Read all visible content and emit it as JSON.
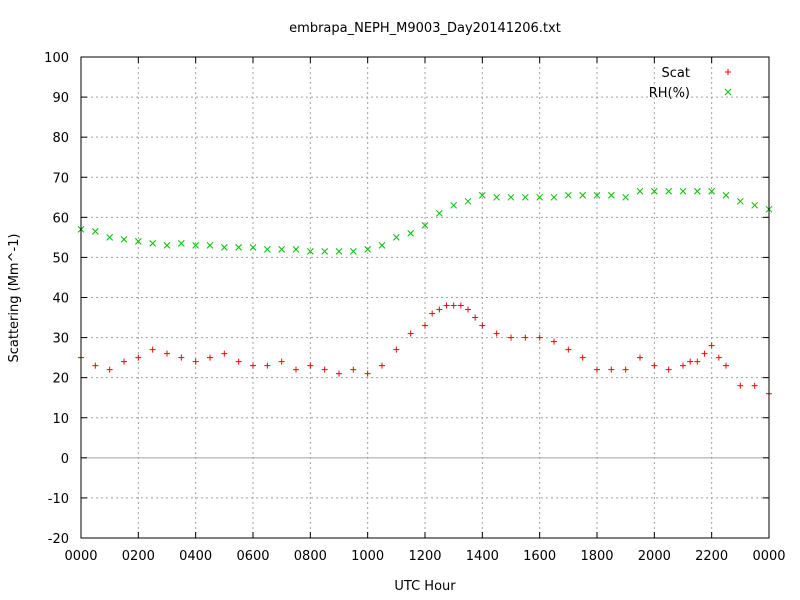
{
  "chart_data": {
    "type": "scatter",
    "title": "embrapa_NEPH_M9003_Day20141206.txt",
    "xlabel": "UTC Hour",
    "ylabel": "Scattering (Mm^-1)",
    "xlim": [
      0,
      24
    ],
    "ylim": [
      -20,
      100
    ],
    "x_ticks": [
      0,
      2,
      4,
      6,
      8,
      10,
      12,
      14,
      16,
      18,
      20,
      22,
      24
    ],
    "x_tick_labels": [
      "0000",
      "0200",
      "0400",
      "0600",
      "0800",
      "1000",
      "1200",
      "1400",
      "1600",
      "1800",
      "2000",
      "2200",
      "0000"
    ],
    "y_ticks": [
      -20,
      -10,
      0,
      10,
      20,
      30,
      40,
      50,
      60,
      70,
      80,
      90,
      100
    ],
    "y_tick_labels": [
      "-20",
      "-10",
      "0",
      "10",
      "20",
      "30",
      "40",
      "50",
      "60",
      "70",
      "80",
      "90",
      "100"
    ],
    "grid": true,
    "legend_position": "top-right",
    "series": [
      {
        "name": "Scat",
        "marker": "+",
        "color": "#ff0000",
        "x": [
          0,
          0.5,
          1,
          1.5,
          2,
          2.5,
          3,
          3.5,
          4,
          4.5,
          5,
          5.5,
          6,
          6.5,
          7,
          7.5,
          8,
          8.5,
          9,
          9.5,
          10,
          10.5,
          11,
          11.5,
          12,
          12.25,
          12.5,
          12.75,
          13,
          13.25,
          13.5,
          13.75,
          14,
          14.5,
          15,
          15.5,
          16,
          16.5,
          17,
          17.5,
          18,
          18.5,
          19,
          19.5,
          20,
          20.5,
          21,
          21.25,
          21.5,
          21.75,
          22,
          22.25,
          22.5,
          23,
          23.5,
          24
        ],
        "y": [
          25,
          23,
          22,
          24,
          25,
          27,
          26,
          25,
          24,
          25,
          26,
          24,
          23,
          23,
          24,
          22,
          23,
          22,
          21,
          22,
          21,
          23,
          27,
          31,
          33,
          36,
          37,
          38,
          38,
          38,
          37,
          35,
          33,
          31,
          30,
          30,
          30,
          29,
          27,
          25,
          22,
          22,
          22,
          25,
          23,
          22,
          23,
          24,
          24,
          26,
          28,
          25,
          23,
          18,
          18,
          16
        ]
      },
      {
        "name": "RH(%)",
        "marker": "x",
        "color": "#00c000",
        "x": [
          0,
          0.5,
          1,
          1.5,
          2,
          2.5,
          3,
          3.5,
          4,
          4.5,
          5,
          5.5,
          6,
          6.5,
          7,
          7.5,
          8,
          8.5,
          9,
          9.5,
          10,
          10.5,
          11,
          11.5,
          12,
          12.5,
          13,
          13.5,
          14,
          14.5,
          15,
          15.5,
          16,
          16.5,
          17,
          17.5,
          18,
          18.5,
          19,
          19.5,
          20,
          20.5,
          21,
          21.5,
          22,
          22.5,
          23,
          23.5,
          24
        ],
        "y": [
          57,
          56.5,
          55,
          54.5,
          54,
          53.5,
          53,
          53.5,
          53,
          53,
          52.5,
          52.5,
          52.5,
          52,
          52,
          52,
          51.5,
          51.5,
          51.5,
          51.5,
          52,
          53,
          55,
          56,
          58,
          61,
          63,
          64,
          65.5,
          65,
          65,
          65,
          65,
          65,
          65.5,
          65.5,
          65.5,
          65.5,
          65,
          66.5,
          66.5,
          66.5,
          66.5,
          66.5,
          66.5,
          65.5,
          64,
          63,
          62
        ]
      }
    ],
    "reference_line": 0
  }
}
